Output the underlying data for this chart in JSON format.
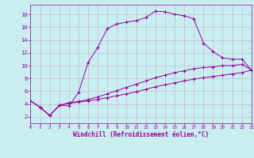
{
  "xlabel": "Windchill (Refroidissement éolien,°C)",
  "bg_color": "#c8eef0",
  "line_color": "#990099",
  "grid_color": "#cc99cc",
  "xlim": [
    0,
    23
  ],
  "ylim": [
    1,
    19.5
  ],
  "xticks": [
    0,
    1,
    2,
    3,
    4,
    5,
    6,
    7,
    8,
    9,
    10,
    11,
    12,
    13,
    14,
    15,
    16,
    17,
    18,
    19,
    20,
    21,
    22,
    23
  ],
  "yticks": [
    2,
    4,
    6,
    8,
    10,
    12,
    14,
    16,
    18
  ],
  "curves": [
    [
      4.5,
      3.5,
      2.2,
      3.8,
      3.7,
      5.8,
      10.5,
      12.8,
      15.8,
      16.5,
      16.8,
      17.0,
      17.5,
      18.5,
      18.4,
      18.0,
      17.8,
      17.3,
      13.5,
      12.2,
      11.2,
      11.0,
      11.0,
      9.3
    ],
    [
      4.5,
      3.5,
      2.2,
      3.8,
      4.1,
      4.3,
      4.5,
      4.7,
      5.0,
      5.3,
      5.6,
      5.9,
      6.3,
      6.7,
      7.0,
      7.3,
      7.6,
      7.9,
      8.1,
      8.3,
      8.5,
      8.7,
      8.9,
      9.3
    ],
    [
      4.5,
      3.5,
      2.2,
      3.8,
      4.2,
      4.4,
      4.7,
      5.1,
      5.6,
      6.1,
      6.6,
      7.1,
      7.6,
      8.1,
      8.5,
      8.9,
      9.2,
      9.5,
      9.7,
      9.8,
      10.0,
      10.0,
      10.2,
      9.3
    ]
  ]
}
